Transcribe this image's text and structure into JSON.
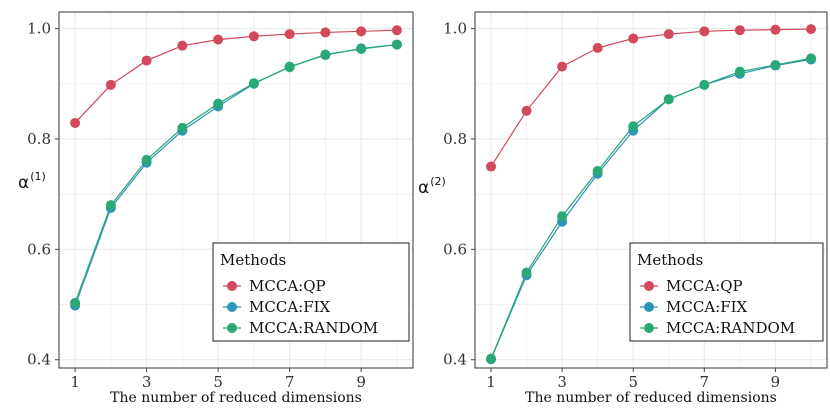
{
  "chart_data": [
    {
      "type": "line",
      "panel": "left",
      "ylabel": "α",
      "ylabel_superscript": "(1)",
      "xlabel": "The number of reduced dimensions",
      "x": [
        1,
        2,
        3,
        4,
        5,
        6,
        7,
        8,
        9,
        10
      ],
      "xlim": [
        0.55,
        10.45
      ],
      "ylim": [
        0.385,
        1.03
      ],
      "xticks": [
        "1",
        "3",
        "5",
        "7",
        "9"
      ],
      "yticks": [
        "0.4",
        "0.6",
        "0.8",
        "1.0"
      ],
      "grid": true,
      "legend_title": "Methods",
      "legend_position": "bottom-right",
      "series": [
        {
          "name": "MCCA:QP",
          "color": "#d1495b",
          "values": [
            0.829,
            0.898,
            0.942,
            0.969,
            0.98,
            0.986,
            0.99,
            0.993,
            0.995,
            0.997
          ]
        },
        {
          "name": "MCCA:FIX",
          "color": "#2e94b9",
          "values": [
            0.498,
            0.675,
            0.757,
            0.815,
            0.859,
            0.9,
            0.931,
            0.952,
            0.964,
            0.971
          ]
        },
        {
          "name": "MCCA:RANDOM",
          "color": "#2aa876",
          "values": [
            0.503,
            0.68,
            0.762,
            0.82,
            0.864,
            0.901,
            0.93,
            0.953,
            0.963,
            0.971
          ]
        }
      ]
    },
    {
      "type": "line",
      "panel": "right",
      "ylabel": "α",
      "ylabel_superscript": "(2)",
      "xlabel": "The number of reduced dimensions",
      "x": [
        1,
        2,
        3,
        4,
        5,
        6,
        7,
        8,
        9,
        10
      ],
      "xlim": [
        0.55,
        10.45
      ],
      "ylim": [
        0.385,
        1.03
      ],
      "xticks": [
        "1",
        "3",
        "5",
        "7",
        "9"
      ],
      "yticks": [
        "0.4",
        "0.6",
        "0.8",
        "1.0"
      ],
      "grid": true,
      "legend_title": "Methods",
      "legend_position": "bottom-right",
      "series": [
        {
          "name": "MCCA:QP",
          "color": "#d1495b",
          "values": [
            0.75,
            0.851,
            0.931,
            0.965,
            0.982,
            0.99,
            0.995,
            0.997,
            0.998,
            0.999
          ]
        },
        {
          "name": "MCCA:FIX",
          "color": "#2e94b9",
          "values": [
            0.401,
            0.553,
            0.65,
            0.737,
            0.815,
            0.872,
            0.898,
            0.918,
            0.933,
            0.944
          ]
        },
        {
          "name": "MCCA:RANDOM",
          "color": "#2aa876",
          "values": [
            0.402,
            0.558,
            0.66,
            0.742,
            0.823,
            0.872,
            0.898,
            0.922,
            0.934,
            0.946
          ]
        }
      ]
    }
  ]
}
